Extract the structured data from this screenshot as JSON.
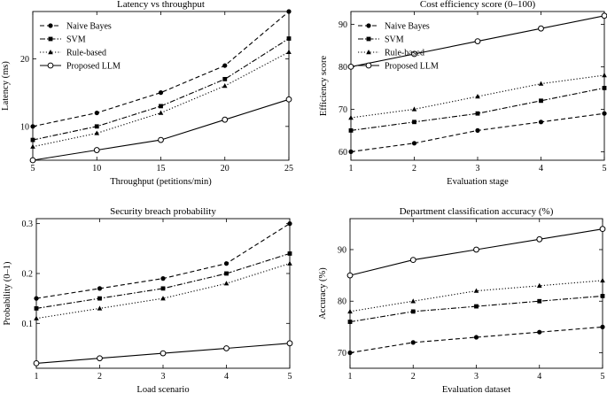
{
  "chart_data": [
    {
      "type": "line",
      "title": "Latency vs throughput",
      "xlabel": "Throughput (petitions/min)",
      "ylabel": "Latency (ms)",
      "xlim": [
        5,
        25
      ],
      "ylim": [
        5,
        27
      ],
      "xticks": [
        5,
        10,
        15,
        20,
        25
      ],
      "yticks": [
        10,
        20
      ],
      "legend": "top-left",
      "x": [
        5,
        10,
        15,
        20,
        25
      ],
      "series": [
        {
          "name": "Naive Bayes",
          "values": [
            10,
            12,
            15,
            19,
            27
          ]
        },
        {
          "name": "SVM",
          "values": [
            8,
            10,
            13,
            17,
            23
          ]
        },
        {
          "name": "Rule-based",
          "values": [
            7,
            9,
            12,
            16,
            21
          ]
        },
        {
          "name": "Proposed LLM",
          "values": [
            5,
            6.5,
            8,
            11,
            14
          ]
        }
      ]
    },
    {
      "type": "line",
      "title": "Cost efficiency score (0–100)",
      "xlabel": "Evaluation stage",
      "ylabel": "Efficiency score",
      "xlim": [
        1,
        5
      ],
      "ylim": [
        58,
        93
      ],
      "xticks": [
        1,
        2,
        3,
        4,
        5
      ],
      "yticks": [
        60,
        70,
        80,
        90
      ],
      "legend": "top-left",
      "x": [
        1,
        2,
        3,
        4,
        5
      ],
      "series": [
        {
          "name": "Naive Bayes",
          "values": [
            60,
            62,
            65,
            67,
            69
          ]
        },
        {
          "name": "SVM",
          "values": [
            65,
            67,
            69,
            72,
            75
          ]
        },
        {
          "name": "Rule-based",
          "values": [
            68,
            70,
            73,
            76,
            78
          ]
        },
        {
          "name": "Proposed LLM",
          "values": [
            80,
            83,
            86,
            89,
            92
          ]
        }
      ]
    },
    {
      "type": "line",
      "title": "Security breach probability",
      "xlabel": "Load scenario",
      "ylabel": "Probability (0–1)",
      "xlim": [
        1,
        5
      ],
      "ylim": [
        0.01,
        0.31
      ],
      "xticks": [
        1,
        2,
        3,
        4,
        5
      ],
      "yticks": [
        0.1,
        0.2,
        0.3
      ],
      "legend": "none",
      "x": [
        1,
        2,
        3,
        4,
        5
      ],
      "series": [
        {
          "name": "Naive Bayes",
          "values": [
            0.15,
            0.17,
            0.19,
            0.22,
            0.3
          ]
        },
        {
          "name": "SVM",
          "values": [
            0.13,
            0.15,
            0.17,
            0.2,
            0.24
          ]
        },
        {
          "name": "Rule-based",
          "values": [
            0.11,
            0.13,
            0.15,
            0.18,
            0.22
          ]
        },
        {
          "name": "Proposed LLM",
          "values": [
            0.02,
            0.03,
            0.04,
            0.05,
            0.06
          ]
        }
      ]
    },
    {
      "type": "line",
      "title": "Department classification accuracy (%)",
      "xlabel": "Evaluation dataset",
      "ylabel": "Accuracy (%)",
      "xlim": [
        1,
        5
      ],
      "ylim": [
        67,
        96
      ],
      "xticks": [
        1,
        2,
        3,
        4,
        5
      ],
      "yticks": [
        70,
        80,
        90
      ],
      "legend": "none",
      "x": [
        1,
        2,
        3,
        4,
        5
      ],
      "series": [
        {
          "name": "Naive Bayes",
          "values": [
            70,
            72,
            73,
            74,
            75
          ]
        },
        {
          "name": "SVM",
          "values": [
            76,
            78,
            79,
            80,
            81
          ]
        },
        {
          "name": "Rule-based",
          "values": [
            78,
            80,
            82,
            83,
            84
          ]
        },
        {
          "name": "Proposed LLM",
          "values": [
            85,
            88,
            90,
            92,
            94
          ]
        }
      ]
    }
  ]
}
